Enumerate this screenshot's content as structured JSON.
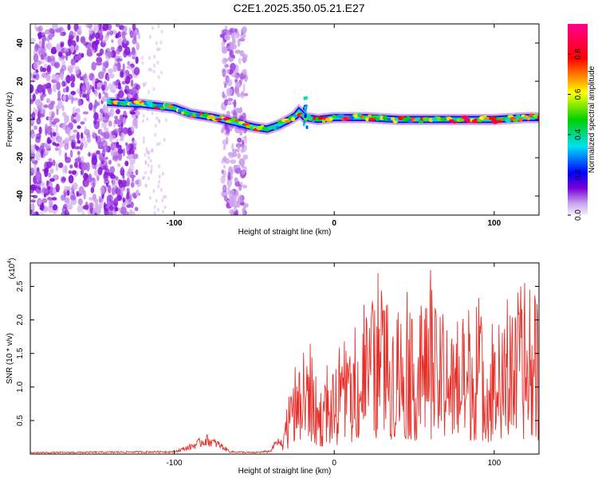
{
  "figure": {
    "title": "C2E1.2025.350.05.21.E27"
  },
  "chart_data": [
    {
      "type": "heatmap",
      "title": "",
      "xlabel": "Height of straight line (km)",
      "ylabel": "Frequency (Hz)",
      "xlim": [
        -190,
        128
      ],
      "ylim": [
        -50,
        50
      ],
      "x_ticks": [
        "-100",
        "0",
        "100"
      ],
      "y_ticks": [
        "40",
        "20",
        "0",
        "-20",
        "-40"
      ],
      "colorbar": {
        "label": "Normalized spectral amplitude",
        "range": [
          0,
          0.95
        ],
        "ticks": [
          "0.0",
          "0.2",
          "0.4",
          "0.6",
          "0.8"
        ],
        "colors": [
          "#eadcf6",
          "#7b00d6",
          "#0000ff",
          "#00e0e0",
          "#00d000",
          "#ffff00",
          "#ff0000",
          "#ff00a0"
        ]
      },
      "ridge": {
        "x": [
          -142,
          -120,
          -100,
          -90,
          -75,
          -60,
          -50,
          -42,
          -35,
          -28,
          -24,
          -22,
          -18,
          -10,
          0,
          20,
          40,
          60,
          80,
          100,
          120,
          128
        ],
        "y": [
          9,
          8,
          6,
          3,
          1,
          -2,
          -4,
          -5,
          -3,
          0,
          2,
          4,
          1,
          0,
          1,
          1,
          0,
          0,
          0,
          0,
          1,
          1
        ]
      },
      "noise_regions": [
        {
          "x_range": [
            -190,
            -122
          ],
          "y_range": [
            -50,
            50
          ],
          "density": "high"
        },
        {
          "x_range": [
            -70,
            -55
          ],
          "y_range": [
            -50,
            50
          ],
          "density": "medium"
        }
      ]
    },
    {
      "type": "line",
      "title": "",
      "xlabel": "Height of straight line (km)",
      "ylabel": "SNR (10 * v/v)",
      "y_scale_label": "(x10",
      "y_scale_exp": "4",
      "y_scale_suffix": ")",
      "xlim": [
        -190,
        128
      ],
      "ylim": [
        0,
        2.85
      ],
      "x_ticks": [
        "-100",
        "0",
        "100"
      ],
      "y_ticks": [
        "0.5",
        "1.0",
        "1.5",
        "2.0",
        "2.5"
      ],
      "series": [
        {
          "name": "SNR",
          "color": "#e8302a",
          "envelope": {
            "x": [
              -190,
              -100,
              -90,
              -80,
              -72,
              -65,
              -50,
              -40,
              -35,
              -30,
              -25,
              -20,
              -15,
              -10,
              0,
              10,
              20,
              30,
              40,
              50,
              60,
              70,
              80,
              90,
              100,
              110,
              120,
              128
            ],
            "y": [
              0.03,
              0.05,
              0.15,
              0.3,
              0.2,
              0.05,
              0.03,
              0.06,
              0.3,
              0.9,
              1.3,
              1.6,
              1.9,
              1.2,
              1.5,
              1.8,
              2.6,
              2.75,
              2.7,
              2.4,
              2.8,
              2.3,
              2.2,
              2.5,
              2.0,
              2.5,
              2.65,
              2.4
            ]
          }
        }
      ]
    }
  ]
}
